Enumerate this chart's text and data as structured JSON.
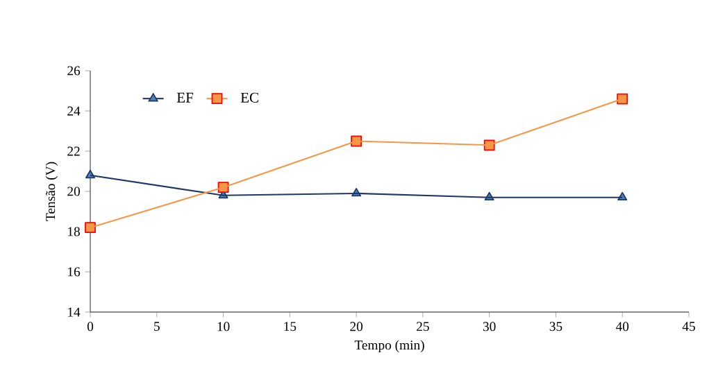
{
  "chart_data": {
    "type": "line",
    "xlabel": "Tempo (min)",
    "ylabel": "Tensão (V)",
    "x": [
      0,
      10,
      20,
      30,
      40
    ],
    "series": [
      {
        "name": "EF",
        "color": "#1f3864",
        "marker": "triangle",
        "values": [
          20.8,
          19.8,
          19.9,
          19.7,
          19.7
        ]
      },
      {
        "name": "EC",
        "color": "#f79646",
        "marker": "square",
        "values": [
          18.2,
          20.2,
          22.5,
          22.3,
          24.6
        ]
      }
    ],
    "xlim": [
      0,
      45
    ],
    "ylim": [
      14,
      26
    ],
    "xticks": [
      0,
      5,
      10,
      15,
      20,
      25,
      30,
      35,
      40,
      45
    ],
    "yticks": [
      14,
      16,
      18,
      20,
      22,
      24,
      26
    ],
    "legend": "top left"
  }
}
